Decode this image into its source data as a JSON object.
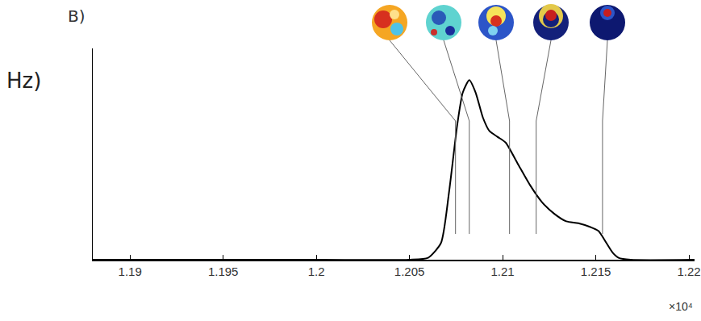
{
  "chart_data": {
    "type": "line",
    "title": "B)",
    "ylabel": "Hz)",
    "annotations": [
      "×10⁴"
    ],
    "x": [
      1.188,
      1.2,
      1.205,
      1.206,
      1.20669,
      1.20712,
      1.20756,
      1.20786,
      1.20821,
      1.20855,
      1.20894,
      1.20929,
      1.20972,
      1.21016,
      1.21081,
      1.21146,
      1.21211,
      1.21276,
      1.21341,
      1.21406,
      1.21471,
      1.21514,
      1.21557,
      1.21592,
      1.21622,
      1.21687,
      1.2203
    ],
    "values": [
      0,
      0,
      0,
      0.01,
      0.087,
      0.35,
      0.7,
      0.87,
      0.935,
      0.87,
      0.74,
      0.67,
      0.64,
      0.61,
      0.5,
      0.39,
      0.3,
      0.24,
      0.2,
      0.19,
      0.17,
      0.15,
      0.087,
      0.035,
      0.01,
      0,
      0
    ],
    "color": "#000000",
    "xlim": [
      1.188,
      1.2203
    ],
    "xticks": [
      1.19,
      1.195,
      1.2,
      1.205,
      1.21,
      1.215,
      1.22
    ],
    "ylim": [
      0,
      1.1
    ],
    "yticks": [],
    "modes": [
      1.20747,
      1.20821,
      1.21037,
      1.2118,
      1.21536
    ],
    "tick_labels": "x",
    "grid": false
  }
}
